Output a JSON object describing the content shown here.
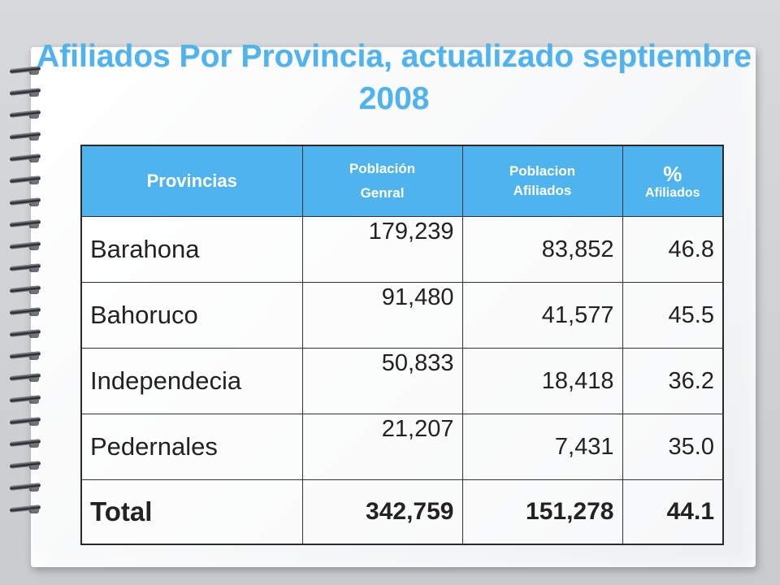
{
  "title": "Afiliados Por Provincia, actualizado septiembre 2008",
  "table": {
    "headers": {
      "provincias": "Provincias",
      "poblacion_line1": "Población",
      "poblacion_line2": "Genral",
      "afiliados_line1": "Poblacion",
      "afiliados_line2": "Afiliados",
      "pct_symbol": "%",
      "pct_label": "Afiliados"
    },
    "rows": [
      {
        "provincia": "Barahona",
        "poblacion": "179,239",
        "afiliados": "83,852",
        "pct": "46.8"
      },
      {
        "provincia": "Bahoruco",
        "poblacion": "91,480",
        "afiliados": "41,577",
        "pct": "45.5"
      },
      {
        "provincia": "Independecia",
        "poblacion": "50,833",
        "afiliados": "18,418",
        "pct": "36.2"
      },
      {
        "provincia": "Pedernales",
        "poblacion": "21,207",
        "afiliados": "7,431",
        "pct": "35.0"
      }
    ],
    "total": {
      "label": "Total",
      "poblacion": "342,759",
      "afiliados": "151,278",
      "pct": "44.1"
    }
  },
  "colors": {
    "accent": "#4fb3ee",
    "text": "#222222",
    "header_text": "#ffffff"
  },
  "icons": {
    "binding": "spiral-binding-icon"
  }
}
